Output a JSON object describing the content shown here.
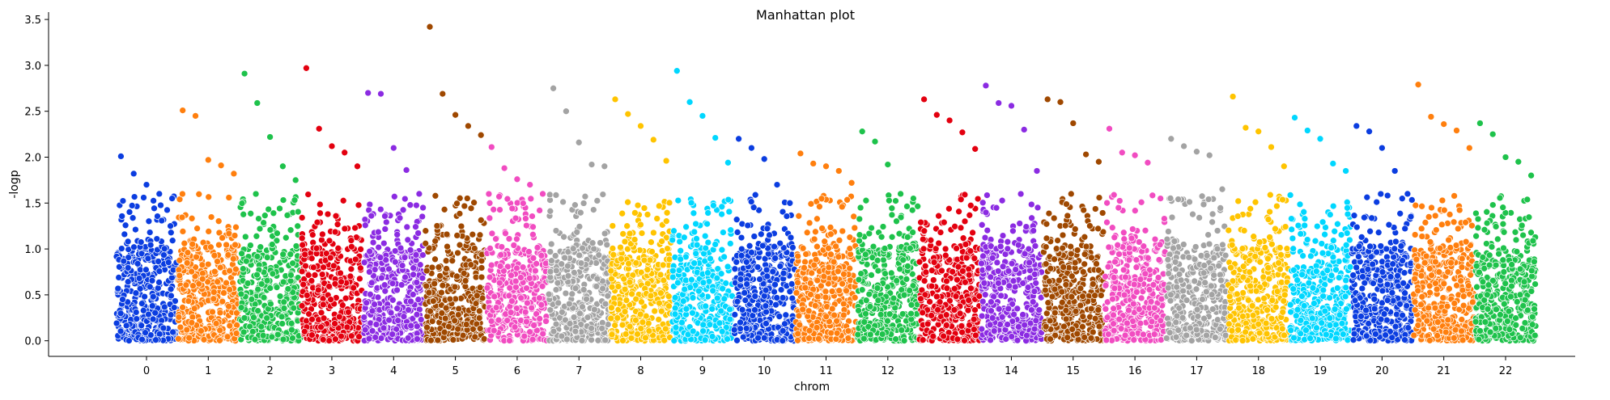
{
  "chart_data": {
    "type": "scatter",
    "title": "Manhattan plot",
    "xlabel": "chrom",
    "ylabel": "-logp",
    "ylim": [
      -0.17,
      3.58
    ],
    "yticks": [
      0.0,
      0.5,
      1.0,
      1.5,
      2.0,
      2.5,
      3.0,
      3.5
    ],
    "ytick_labels": [
      "0.0",
      "0.5",
      "1.0",
      "1.5",
      "2.0",
      "2.5",
      "3.0",
      "3.5"
    ],
    "grid": false,
    "legend": "none",
    "categories": [
      "0",
      "1",
      "2",
      "3",
      "4",
      "5",
      "6",
      "7",
      "8",
      "9",
      "10",
      "11",
      "12",
      "13",
      "14",
      "15",
      "16",
      "17",
      "18",
      "19",
      "20",
      "21",
      "22"
    ],
    "chromosomes": [
      {
        "name": "0",
        "color": "#0b3de0",
        "peaks": [
          2.01,
          1.82,
          1.7,
          1.6,
          1.55
        ]
      },
      {
        "name": "1",
        "color": "#ff7f0e",
        "peaks": [
          2.51,
          2.45,
          1.97,
          1.91,
          1.82
        ]
      },
      {
        "name": "2",
        "color": "#1ec24b",
        "peaks": [
          2.91,
          2.59,
          2.22,
          1.9,
          1.75
        ]
      },
      {
        "name": "3",
        "color": "#e3000f",
        "peaks": [
          2.97,
          2.31,
          2.12,
          2.05,
          1.9
        ]
      },
      {
        "name": "4",
        "color": "#8b2be2",
        "peaks": [
          2.7,
          2.69,
          2.1,
          1.86,
          1.6
        ]
      },
      {
        "name": "5",
        "color": "#9f4800",
        "peaks": [
          3.42,
          2.69,
          2.46,
          2.34,
          2.24
        ]
      },
      {
        "name": "6",
        "color": "#f14cc1",
        "peaks": [
          2.11,
          1.88,
          1.76,
          1.7,
          1.6
        ]
      },
      {
        "name": "7",
        "color": "#a3a3a3",
        "peaks": [
          2.75,
          2.5,
          2.16,
          1.92,
          1.9
        ]
      },
      {
        "name": "8",
        "color": "#ffc400",
        "peaks": [
          2.63,
          2.47,
          2.34,
          2.19,
          1.96
        ]
      },
      {
        "name": "9",
        "color": "#00d7ff",
        "peaks": [
          2.94,
          2.6,
          2.45,
          2.21,
          1.94
        ]
      },
      {
        "name": "10",
        "color": "#0b3de0",
        "peaks": [
          2.2,
          2.1,
          1.98,
          1.7,
          1.5
        ]
      },
      {
        "name": "11",
        "color": "#ff7f0e",
        "peaks": [
          2.04,
          1.93,
          1.9,
          1.85,
          1.72
        ]
      },
      {
        "name": "12",
        "color": "#1ec24b",
        "peaks": [
          2.28,
          2.17,
          1.92,
          1.6,
          1.55
        ]
      },
      {
        "name": "13",
        "color": "#e3000f",
        "peaks": [
          2.63,
          2.46,
          2.4,
          2.27,
          2.09
        ]
      },
      {
        "name": "14",
        "color": "#8b2be2",
        "peaks": [
          2.78,
          2.59,
          2.56,
          2.3,
          1.85
        ]
      },
      {
        "name": "15",
        "color": "#9f4800",
        "peaks": [
          2.63,
          2.6,
          2.37,
          2.03,
          1.95
        ]
      },
      {
        "name": "16",
        "color": "#f14cc1",
        "peaks": [
          2.31,
          2.05,
          2.02,
          1.94,
          1.55
        ]
      },
      {
        "name": "17",
        "color": "#a3a3a3",
        "peaks": [
          2.2,
          2.12,
          2.06,
          2.02,
          1.65
        ]
      },
      {
        "name": "18",
        "color": "#ffc400",
        "peaks": [
          2.66,
          2.32,
          2.28,
          2.11,
          1.9
        ]
      },
      {
        "name": "19",
        "color": "#00d7ff",
        "peaks": [
          2.43,
          2.29,
          2.2,
          1.93,
          1.85
        ]
      },
      {
        "name": "20",
        "color": "#0b3de0",
        "peaks": [
          2.34,
          2.28,
          2.1,
          1.85,
          1.6
        ]
      },
      {
        "name": "21",
        "color": "#ff7f0e",
        "peaks": [
          2.79,
          2.44,
          2.36,
          2.29,
          2.1
        ]
      },
      {
        "name": "22",
        "color": "#1ec24b",
        "peaks": [
          2.37,
          2.25,
          2.0,
          1.95,
          1.8
        ]
      }
    ],
    "note_points": "Each chromosome shows a dense band of several hundred points between -logp 0.0 and about 1.0, with sparser points up to the listed peak values."
  }
}
